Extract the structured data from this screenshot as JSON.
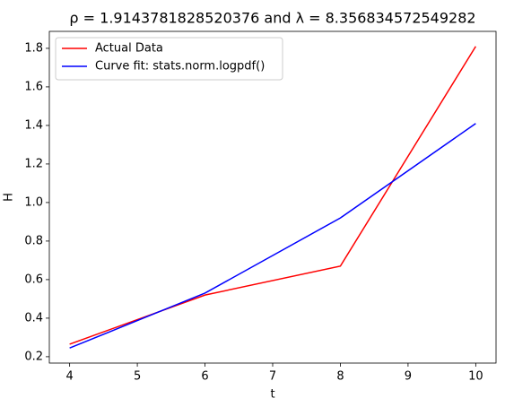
{
  "chart_data": {
    "type": "line",
    "title": "ρ = 1.9143781828520376 and λ = 8.356834572549282",
    "xlabel": "t",
    "ylabel": "H",
    "x": [
      4,
      6,
      8,
      10
    ],
    "series": [
      {
        "name": "Actual Data",
        "color": "#ff0000",
        "values": [
          0.265,
          0.52,
          0.67,
          1.81
        ]
      },
      {
        "name": "Curve fit: stats.norm.logpdf()",
        "color": "#0000ff",
        "values": [
          0.245,
          0.53,
          0.92,
          1.41
        ]
      }
    ],
    "xlim": [
      3.7,
      10.3
    ],
    "xticks": [
      4,
      5,
      6,
      7,
      8,
      9,
      10
    ],
    "ylim": [
      0.167,
      1.888
    ],
    "yticks": [
      0.2,
      0.4,
      0.6,
      0.8,
      {
        "value": 1,
        "label": "1.0"
      },
      1.2,
      1.4,
      1.6,
      1.8
    ],
    "legend": "upper left",
    "grid": false
  }
}
